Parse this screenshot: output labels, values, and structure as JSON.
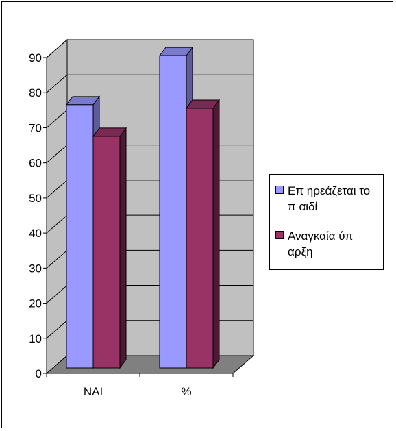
{
  "chart_data": {
    "type": "bar",
    "categories": [
      "NAI",
      "%"
    ],
    "series": [
      {
        "name": "Επ ηρεάζεται το π αιδί",
        "values": [
          75,
          89
        ],
        "color": "#9999FF",
        "top_color": "#7A7ACC",
        "side_color": "#5C5C99"
      },
      {
        "name": "Αναγκαία ύπ αρξη",
        "values": [
          66,
          74
        ],
        "color": "#993366",
        "top_color": "#7A2952",
        "side_color": "#4D1A33"
      }
    ],
    "ylim": [
      0,
      90
    ],
    "yticks": [
      0,
      10,
      20,
      30,
      40,
      50,
      60,
      70,
      80,
      90
    ],
    "plot_background": "#C0C0C0",
    "floor_color": "#808080",
    "grid": true,
    "legend_position": "right",
    "projection": "3d"
  }
}
